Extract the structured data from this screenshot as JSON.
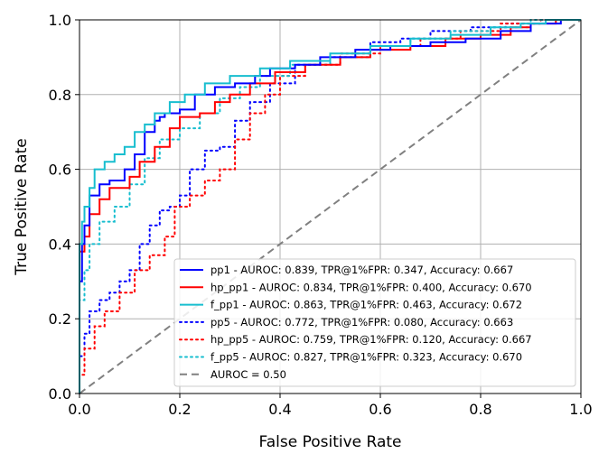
{
  "chart_data": {
    "type": "line",
    "title": "",
    "xlabel": "False Positive Rate",
    "ylabel": "True Positive Rate",
    "xlim": [
      0,
      1
    ],
    "ylim": [
      0,
      1
    ],
    "xticks": [
      "0.0",
      "0.2",
      "0.4",
      "0.6",
      "0.8",
      "1.0"
    ],
    "yticks": [
      "0.0",
      "0.2",
      "0.4",
      "0.6",
      "0.8",
      "1.0"
    ],
    "grid": true,
    "legend_position": "lower-right",
    "series": [
      {
        "name": "pp1 - AUROC: 0.839, TPR@1%FPR: 0.347, Accuracy: 0.667",
        "color": "#0000ff",
        "style": "solid",
        "x": [
          0,
          0,
          0.005,
          0.005,
          0.01,
          0.01,
          0.02,
          0.02,
          0.04,
          0.04,
          0.06,
          0.06,
          0.09,
          0.09,
          0.11,
          0.11,
          0.13,
          0.13,
          0.15,
          0.15,
          0.16,
          0.16,
          0.17,
          0.17,
          0.2,
          0.2,
          0.23,
          0.23,
          0.27,
          0.27,
          0.31,
          0.31,
          0.35,
          0.35,
          0.38,
          0.38,
          0.43,
          0.43,
          0.48,
          0.48,
          0.55,
          0.55,
          0.62,
          0.62,
          0.7,
          0.7,
          0.77,
          0.77,
          0.84,
          0.84,
          0.9,
          0.9,
          0.96,
          0.96,
          1.0
        ],
        "y": [
          0,
          0.3,
          0.3,
          0.4,
          0.4,
          0.45,
          0.45,
          0.53,
          0.53,
          0.56,
          0.56,
          0.57,
          0.57,
          0.6,
          0.6,
          0.64,
          0.64,
          0.7,
          0.7,
          0.73,
          0.73,
          0.74,
          0.74,
          0.75,
          0.75,
          0.76,
          0.76,
          0.8,
          0.8,
          0.82,
          0.82,
          0.83,
          0.83,
          0.85,
          0.85,
          0.87,
          0.87,
          0.88,
          0.88,
          0.9,
          0.9,
          0.92,
          0.92,
          0.93,
          0.93,
          0.94,
          0.94,
          0.95,
          0.95,
          0.97,
          0.97,
          0.99,
          0.99,
          1.0,
          1.0
        ]
      },
      {
        "name": "hp_pp1 - AUROC: 0.834, TPR@1%FPR: 0.400, Accuracy: 0.670",
        "color": "#ff0000",
        "style": "solid",
        "x": [
          0,
          0,
          0.01,
          0.01,
          0.02,
          0.02,
          0.04,
          0.04,
          0.06,
          0.06,
          0.1,
          0.1,
          0.12,
          0.12,
          0.15,
          0.15,
          0.18,
          0.18,
          0.2,
          0.2,
          0.24,
          0.24,
          0.27,
          0.27,
          0.3,
          0.3,
          0.34,
          0.34,
          0.39,
          0.39,
          0.45,
          0.45,
          0.52,
          0.52,
          0.58,
          0.58,
          0.66,
          0.66,
          0.73,
          0.73,
          0.8,
          0.8,
          0.86,
          0.86,
          0.9,
          0.9,
          0.95,
          0.95,
          1.0
        ],
        "y": [
          0,
          0.38,
          0.38,
          0.42,
          0.42,
          0.48,
          0.48,
          0.52,
          0.52,
          0.55,
          0.55,
          0.58,
          0.58,
          0.62,
          0.62,
          0.66,
          0.66,
          0.71,
          0.71,
          0.74,
          0.74,
          0.75,
          0.75,
          0.78,
          0.78,
          0.8,
          0.8,
          0.83,
          0.83,
          0.86,
          0.86,
          0.88,
          0.88,
          0.9,
          0.9,
          0.92,
          0.92,
          0.93,
          0.93,
          0.95,
          0.95,
          0.96,
          0.96,
          0.98,
          0.98,
          0.99,
          0.99,
          1.0,
          1.0
        ]
      },
      {
        "name": "f_pp1 - AUROC: 0.863, TPR@1%FPR: 0.463, Accuracy: 0.672",
        "color": "#17becf",
        "style": "solid",
        "x": [
          0,
          0,
          0.005,
          0.005,
          0.01,
          0.01,
          0.02,
          0.02,
          0.03,
          0.03,
          0.05,
          0.05,
          0.07,
          0.07,
          0.09,
          0.09,
          0.11,
          0.11,
          0.13,
          0.13,
          0.15,
          0.15,
          0.18,
          0.18,
          0.21,
          0.21,
          0.25,
          0.25,
          0.3,
          0.3,
          0.36,
          0.36,
          0.42,
          0.42,
          0.5,
          0.5,
          0.58,
          0.58,
          0.66,
          0.66,
          0.74,
          0.74,
          0.82,
          0.82,
          0.88,
          0.88,
          0.93,
          0.93,
          1.0
        ],
        "y": [
          0,
          0.4,
          0.4,
          0.46,
          0.46,
          0.5,
          0.5,
          0.55,
          0.55,
          0.6,
          0.6,
          0.62,
          0.62,
          0.64,
          0.64,
          0.66,
          0.66,
          0.7,
          0.7,
          0.72,
          0.72,
          0.75,
          0.75,
          0.78,
          0.78,
          0.8,
          0.8,
          0.83,
          0.83,
          0.85,
          0.85,
          0.87,
          0.87,
          0.89,
          0.89,
          0.91,
          0.91,
          0.93,
          0.93,
          0.95,
          0.95,
          0.96,
          0.96,
          0.98,
          0.98,
          0.99,
          0.99,
          1.0,
          1.0
        ]
      },
      {
        "name": "pp5 - AUROC: 0.772, TPR@1%FPR: 0.080, Accuracy: 0.663",
        "color": "#0000ff",
        "style": "dotted",
        "x": [
          0,
          0,
          0.01,
          0.01,
          0.02,
          0.02,
          0.04,
          0.04,
          0.06,
          0.06,
          0.08,
          0.08,
          0.1,
          0.1,
          0.12,
          0.12,
          0.14,
          0.14,
          0.16,
          0.16,
          0.18,
          0.18,
          0.2,
          0.2,
          0.22,
          0.22,
          0.25,
          0.25,
          0.28,
          0.28,
          0.31,
          0.31,
          0.34,
          0.34,
          0.38,
          0.38,
          0.43,
          0.43,
          0.5,
          0.5,
          0.58,
          0.58,
          0.64,
          0.64,
          0.7,
          0.7,
          0.78,
          0.78,
          0.85,
          0.85,
          0.92,
          0.92,
          1.0
        ],
        "y": [
          0,
          0.1,
          0.1,
          0.16,
          0.16,
          0.22,
          0.22,
          0.25,
          0.25,
          0.27,
          0.27,
          0.3,
          0.3,
          0.33,
          0.33,
          0.4,
          0.4,
          0.45,
          0.45,
          0.49,
          0.49,
          0.5,
          0.5,
          0.53,
          0.53,
          0.6,
          0.6,
          0.65,
          0.65,
          0.66,
          0.66,
          0.73,
          0.73,
          0.78,
          0.78,
          0.83,
          0.83,
          0.88,
          0.88,
          0.9,
          0.9,
          0.94,
          0.94,
          0.95,
          0.95,
          0.97,
          0.97,
          0.98,
          0.98,
          0.99,
          0.99,
          1.0,
          1.0
        ]
      },
      {
        "name": "hp_pp5 - AUROC: 0.759, TPR@1%FPR: 0.120, Accuracy: 0.667",
        "color": "#ff0000",
        "style": "dotted",
        "x": [
          0,
          0,
          0.01,
          0.01,
          0.03,
          0.03,
          0.05,
          0.05,
          0.08,
          0.08,
          0.11,
          0.11,
          0.14,
          0.14,
          0.17,
          0.17,
          0.19,
          0.19,
          0.22,
          0.22,
          0.25,
          0.25,
          0.28,
          0.28,
          0.31,
          0.31,
          0.34,
          0.34,
          0.37,
          0.37,
          0.4,
          0.4,
          0.45,
          0.45,
          0.52,
          0.52,
          0.6,
          0.6,
          0.68,
          0.68,
          0.76,
          0.76,
          0.84,
          0.84,
          0.92,
          0.92,
          1.0
        ],
        "y": [
          0,
          0.05,
          0.05,
          0.12,
          0.12,
          0.18,
          0.18,
          0.22,
          0.22,
          0.27,
          0.27,
          0.33,
          0.33,
          0.37,
          0.37,
          0.42,
          0.42,
          0.5,
          0.5,
          0.53,
          0.53,
          0.57,
          0.57,
          0.6,
          0.6,
          0.68,
          0.68,
          0.75,
          0.75,
          0.8,
          0.8,
          0.85,
          0.85,
          0.88,
          0.88,
          0.91,
          0.91,
          0.93,
          0.93,
          0.95,
          0.95,
          0.97,
          0.97,
          0.99,
          0.99,
          1.0,
          1.0
        ]
      },
      {
        "name": "f_pp5 - AUROC: 0.827, TPR@1%FPR: 0.323, Accuracy: 0.670",
        "color": "#17becf",
        "style": "dotted",
        "x": [
          0,
          0,
          0.01,
          0.01,
          0.02,
          0.02,
          0.04,
          0.04,
          0.07,
          0.07,
          0.1,
          0.1,
          0.13,
          0.13,
          0.16,
          0.16,
          0.2,
          0.2,
          0.24,
          0.24,
          0.28,
          0.28,
          0.32,
          0.32,
          0.36,
          0.36,
          0.42,
          0.42,
          0.5,
          0.5,
          0.58,
          0.58,
          0.66,
          0.66,
          0.74,
          0.74,
          0.82,
          0.82,
          0.9,
          0.9,
          1.0
        ],
        "y": [
          0,
          0.25,
          0.25,
          0.33,
          0.33,
          0.4,
          0.4,
          0.46,
          0.46,
          0.5,
          0.5,
          0.56,
          0.56,
          0.63,
          0.63,
          0.68,
          0.68,
          0.71,
          0.71,
          0.75,
          0.75,
          0.79,
          0.79,
          0.82,
          0.82,
          0.85,
          0.85,
          0.88,
          0.88,
          0.9,
          0.9,
          0.93,
          0.93,
          0.95,
          0.95,
          0.97,
          0.97,
          0.98,
          0.98,
          1.0,
          1.0
        ]
      },
      {
        "name": "AUROC = 0.50",
        "color": "#808080",
        "style": "dashed",
        "x": [
          0,
          1
        ],
        "y": [
          0,
          1
        ]
      }
    ]
  }
}
